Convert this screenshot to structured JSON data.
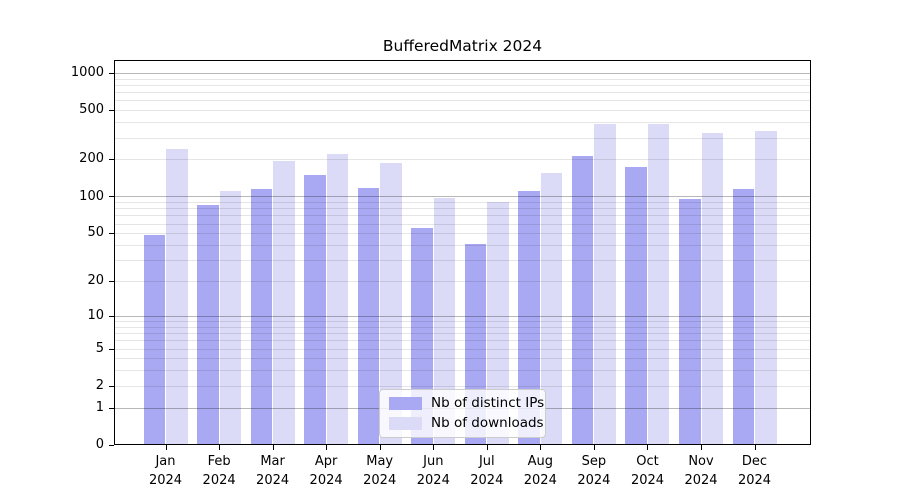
{
  "title": "BufferedMatrix 2024",
  "chart_data": {
    "type": "bar",
    "title": "BufferedMatrix 2024",
    "categories": [
      "Jan",
      "Feb",
      "Mar",
      "Apr",
      "May",
      "Jun",
      "Jul",
      "Aug",
      "Sep",
      "Oct",
      "Nov",
      "Dec"
    ],
    "category_year": "2024",
    "series": [
      {
        "name": "Nb of distinct IPs",
        "color": "#a9a9f3",
        "values": [
          48,
          85,
          115,
          150,
          118,
          55,
          41,
          110,
          215,
          175,
          95,
          115
        ]
      },
      {
        "name": "Nb of downloads",
        "color": "#dbdbf8",
        "values": [
          245,
          110,
          195,
          220,
          186,
          98,
          90,
          155,
          385,
          385,
          325,
          340
        ]
      }
    ],
    "y_axis": {
      "scale": "log10(x+1)",
      "ticks": [
        0,
        1,
        2,
        5,
        10,
        20,
        50,
        100,
        200,
        500,
        1000
      ],
      "range": [
        0,
        1250
      ]
    },
    "xlabel": "",
    "ylabel": "",
    "grid": "on",
    "grid_position": "above-bars",
    "legend_position": "lower center"
  }
}
